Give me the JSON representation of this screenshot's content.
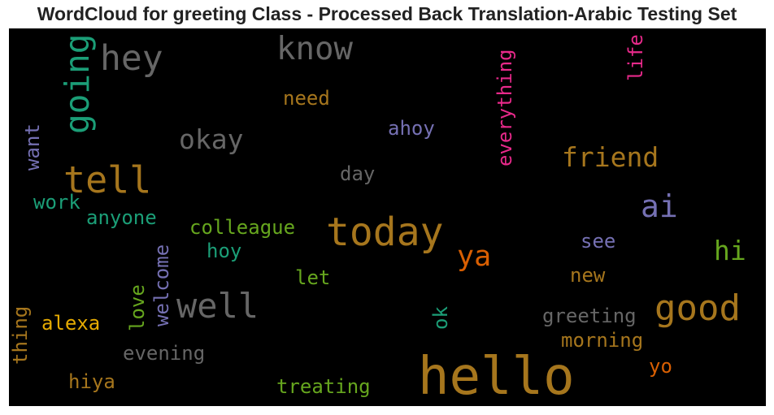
{
  "title": "WordCloud for greeting Class - Processed Back Translation-Arabic Testing Set",
  "words": [
    {
      "text": "hello",
      "color": "#a6761d"
    },
    {
      "text": "today",
      "color": "#a6761d"
    },
    {
      "text": "good",
      "color": "#a6761d"
    },
    {
      "text": "well",
      "color": "#666666"
    },
    {
      "text": "tell",
      "color": "#a6761d"
    },
    {
      "text": "hey",
      "color": "#666666"
    },
    {
      "text": "know",
      "color": "#666666"
    },
    {
      "text": "going",
      "color": "#1b9e77"
    },
    {
      "text": "ai",
      "color": "#7570b3"
    },
    {
      "text": "friend",
      "color": "#a6761d"
    },
    {
      "text": "okay",
      "color": "#666666"
    },
    {
      "text": "ya",
      "color": "#d95f02"
    },
    {
      "text": "hi",
      "color": "#66a61e"
    },
    {
      "text": "everything",
      "color": "#e7298a"
    },
    {
      "text": "life",
      "color": "#e7298a"
    },
    {
      "text": "need",
      "color": "#a6761d"
    },
    {
      "text": "ahoy",
      "color": "#7570b3"
    },
    {
      "text": "day",
      "color": "#666666"
    },
    {
      "text": "want",
      "color": "#7570b3"
    },
    {
      "text": "work",
      "color": "#1b9e77"
    },
    {
      "text": "anyone",
      "color": "#1b9e77"
    },
    {
      "text": "colleague",
      "color": "#66a61e"
    },
    {
      "text": "hoy",
      "color": "#1b9e77"
    },
    {
      "text": "welcome",
      "color": "#7570b3"
    },
    {
      "text": "love",
      "color": "#66a61e"
    },
    {
      "text": "let",
      "color": "#66a61e"
    },
    {
      "text": "see",
      "color": "#7570b3"
    },
    {
      "text": "new",
      "color": "#a6761d"
    },
    {
      "text": "greeting",
      "color": "#666666"
    },
    {
      "text": "morning",
      "color": "#a6761d"
    },
    {
      "text": "ok",
      "color": "#1b9e77"
    },
    {
      "text": "alexa",
      "color": "#e6ab02"
    },
    {
      "text": "thing",
      "color": "#a6761d"
    },
    {
      "text": "evening",
      "color": "#666666"
    },
    {
      "text": "hiya",
      "color": "#a6761d"
    },
    {
      "text": "treating",
      "color": "#66a61e"
    },
    {
      "text": "yo",
      "color": "#d95f02"
    }
  ]
}
